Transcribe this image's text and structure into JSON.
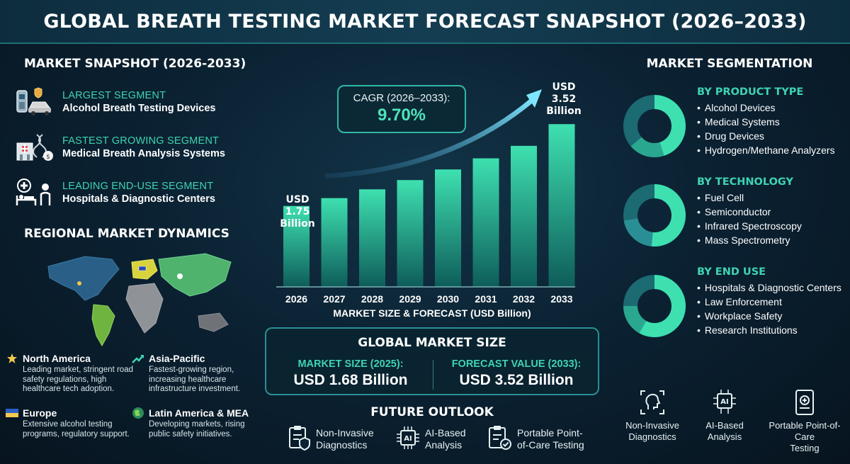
{
  "header": {
    "title": "GLOBAL BREATH TESTING MARKET FORECAST SNAPSHOT (2026–2033)"
  },
  "snapshot": {
    "title": "MARKET SNAPSHOT (2026-2033)",
    "items": [
      {
        "label": "LARGEST SEGMENT",
        "value": "Alcohol Breath Testing Devices",
        "icon": "police-car-breathalyzer-icon"
      },
      {
        "label": "FASTEST GROWING SEGMENT",
        "value": "Medical Breath Analysis Systems",
        "icon": "hospital-dna-icon"
      },
      {
        "label": "LEADING END-USE SEGMENT",
        "value": "Hospitals & Diagnostic Centers",
        "icon": "hospital-bed-icon"
      }
    ]
  },
  "regional": {
    "title": "REGIONAL MARKET DYNAMICS",
    "regions": [
      {
        "name": "North America",
        "desc": "Leading market, stringent road safety regulations, high healthcare tech adoption.",
        "icon": "star-icon"
      },
      {
        "name": "Asia-Pacific",
        "desc": "Fastest-growing region, increasing healthcare infrastructure investment.",
        "icon": "trend-up-icon"
      },
      {
        "name": "Europe",
        "desc": "Extensive alcohol testing programs, regulatory support.",
        "icon": "eu-flag-icon"
      },
      {
        "name": "Latin America & MEA",
        "desc": "Developing markets, rising public safety initiatives.",
        "icon": "globe-icon"
      }
    ]
  },
  "cagr": {
    "label": "CAGR (2026–2033):",
    "value": "9.70%"
  },
  "bar_annotations": {
    "start": [
      "USD",
      "1.75",
      "Billion"
    ],
    "end": [
      "USD",
      "3.52",
      "Billion"
    ]
  },
  "chart_data": {
    "type": "bar",
    "categories": [
      "2026",
      "2027",
      "2028",
      "2029",
      "2030",
      "2031",
      "2032",
      "2033"
    ],
    "values": [
      1.75,
      1.92,
      2.11,
      2.31,
      2.54,
      2.78,
      3.05,
      3.52
    ],
    "title": "",
    "xlabel": "MARKET SIZE & FORECAST (USD Billion)",
    "ylabel": "",
    "ylim": [
      0,
      3.6
    ],
    "grid": false,
    "colors": {
      "bar_top": "#3ee0b0",
      "bar_bottom": "#0e5d5a",
      "arrow": "#5ad8ff"
    }
  },
  "global_market": {
    "title": "GLOBAL MARKET SIZE",
    "size_label": "MARKET SIZE (2025):",
    "size_value": "USD 1.68 Billion",
    "forecast_label": "FORECAST VALUE (2033):",
    "forecast_value": "USD 3.52 Billion"
  },
  "future_outlook": {
    "title": "FUTURE OUTLOOK",
    "items": [
      {
        "lines": [
          "Non-Invasive",
          "Diagnostics"
        ],
        "icon": "clipboard-shield-icon"
      },
      {
        "lines": [
          "AI-Based",
          "Analysis"
        ],
        "icon": "ai-chip-icon"
      },
      {
        "lines": [
          "Portable Point-",
          "of-Care Testing"
        ],
        "icon": "clipboard-check-icon"
      }
    ]
  },
  "segmentation": {
    "title": "MARKET SEGMENTATION",
    "groups": [
      {
        "title": "BY PRODUCT TYPE",
        "items": [
          "Alcohol Devices",
          "Medical Systems",
          "Drug Devices",
          "Hydrogen/Methane Analyzers"
        ]
      },
      {
        "title": "BY TECHNOLOGY",
        "items": [
          "Fuel Cell",
          "Semiconductor",
          "Infrared Spectroscopy",
          "Mass Spectrometry"
        ]
      },
      {
        "title": "BY END USE",
        "items": [
          "Hospitals & Diagnostic Centers",
          "Law Enforcement",
          "Workplace Safety",
          "Research Institutions"
        ]
      }
    ]
  },
  "right_outlook": [
    {
      "lines": [
        "Non-Invasive",
        "Diagnostics"
      ],
      "icon": "head-scan-icon"
    },
    {
      "lines": [
        "AI-Based",
        "Analysis"
      ],
      "icon": "ai-head-icon"
    },
    {
      "lines": [
        "Portable Point-of-Care",
        "Testing"
      ],
      "icon": "tablet-medical-icon"
    }
  ],
  "colors": {
    "accent": "#3fd3b3",
    "background": "#0b2233",
    "donut_dark": "#1c6a72",
    "donut_light": "#3ee0b0"
  }
}
